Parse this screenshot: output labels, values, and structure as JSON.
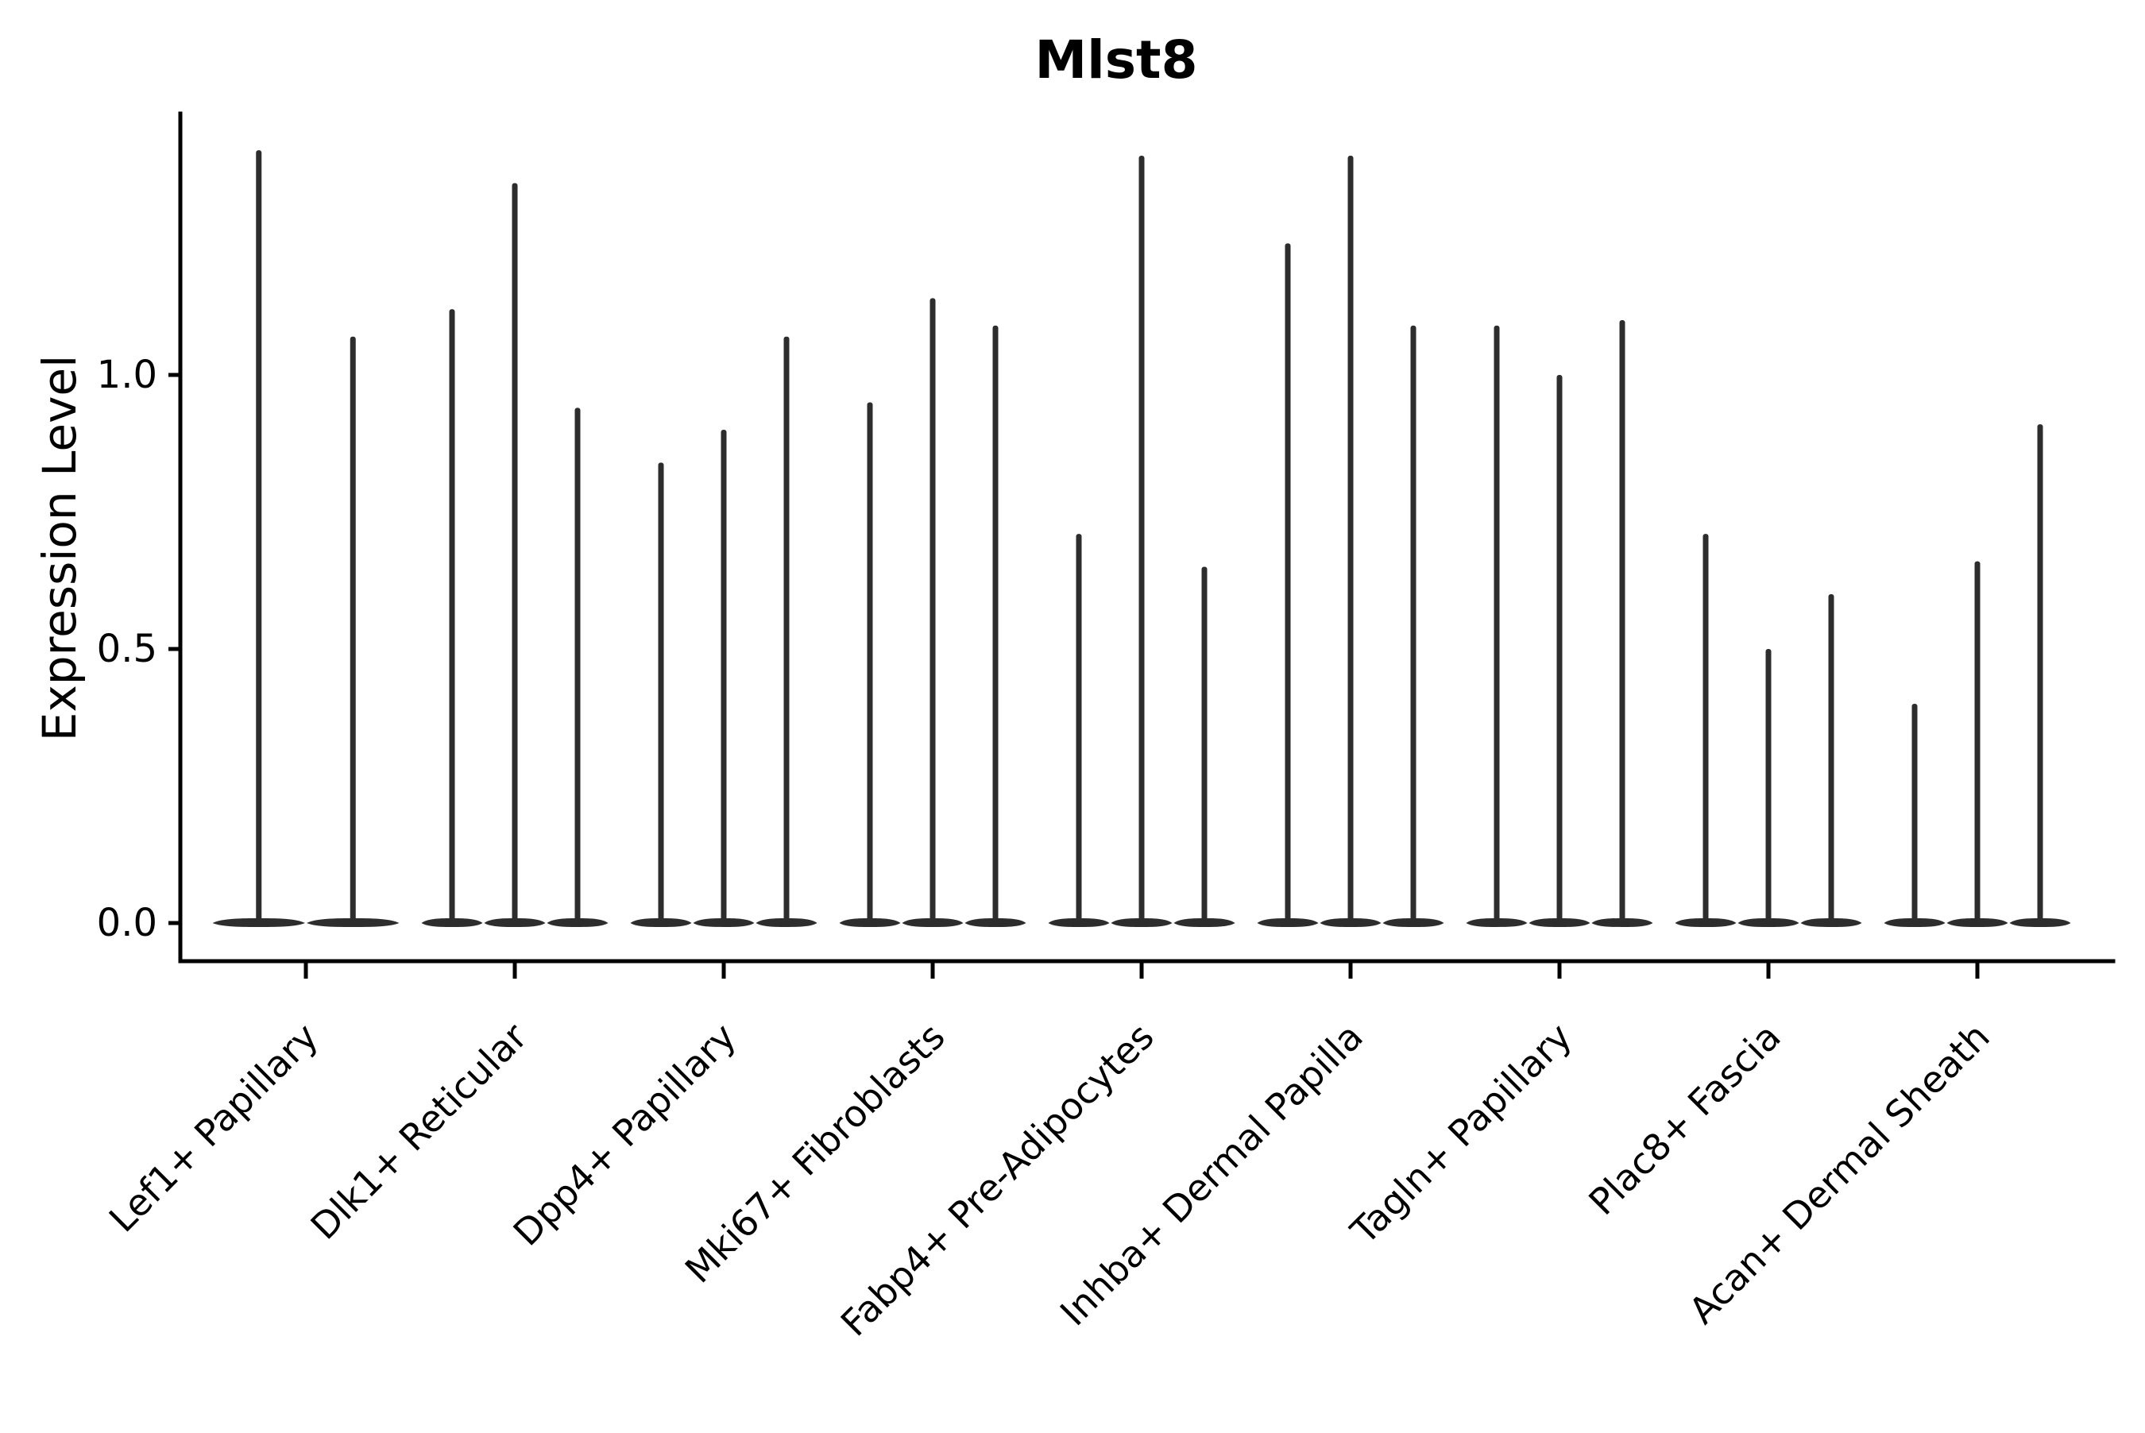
{
  "chart_data": {
    "type": "violin",
    "title": "Mlst8",
    "ylabel": "Expression Level",
    "xlabel": "",
    "grid": false,
    "legend": false,
    "ylim": [
      0,
      1.48
    ],
    "ytick_labels": [
      "0.0",
      "0.5",
      "1.0"
    ],
    "ytick_values": [
      0.0,
      0.5,
      1.0
    ],
    "categories": [
      "Lef1+ Papillary",
      "Dlk1+ Reticular",
      "Dpp4+ Papillary",
      "Mki67+ Fibroblasts",
      "Fabp4+ Pre-Adipocytes",
      "Inhba+ Dermal Papilla",
      "Tagln+ Papillary",
      "Plac8+ Fascia",
      "Acan+ Dermal Sheath"
    ],
    "violin_baseline_value": 0.0,
    "violin_max_by_category": [
      [
        1.41,
        1.07
      ],
      [
        1.12,
        1.35,
        0.94
      ],
      [
        0.84,
        0.9,
        1.07
      ],
      [
        0.95,
        1.14,
        1.09
      ],
      [
        0.71,
        1.4,
        0.65
      ],
      [
        1.24,
        1.4,
        1.09
      ],
      [
        1.09,
        1.0,
        1.1
      ],
      [
        0.71,
        0.5,
        0.6
      ],
      [
        0.4,
        0.66,
        0.91
      ]
    ],
    "colors": {
      "violin": "#2d2d2d",
      "axis": "#000000",
      "text": "#000000",
      "background": "#ffffff"
    }
  }
}
